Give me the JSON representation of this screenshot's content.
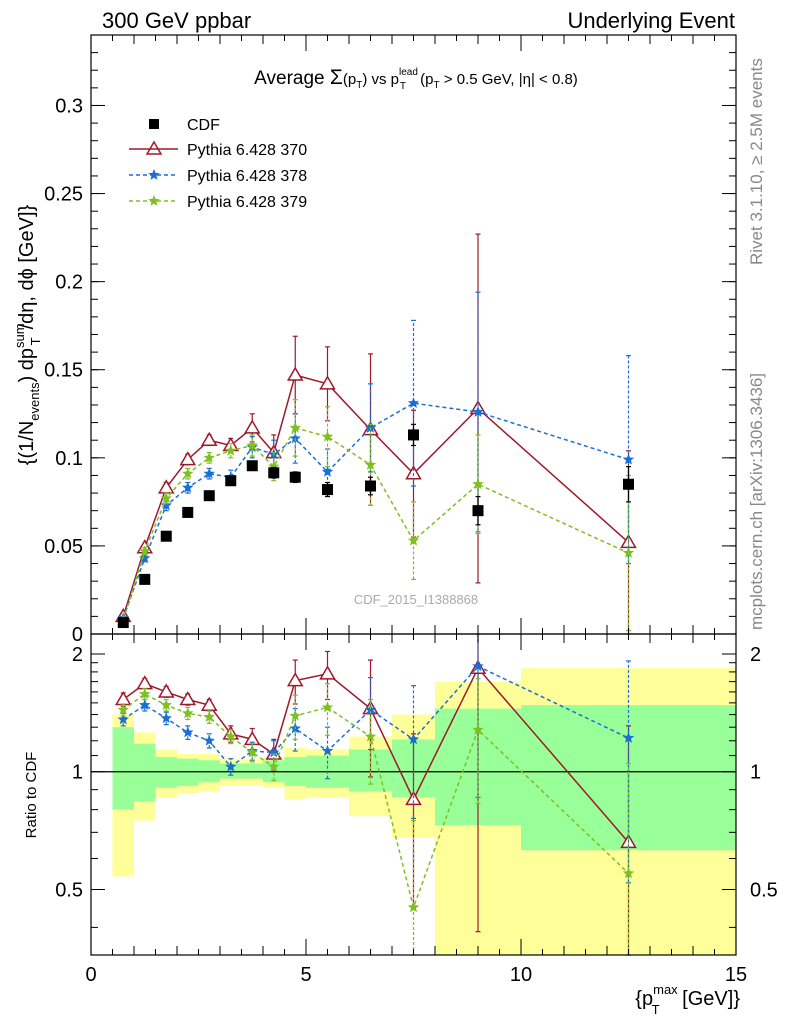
{
  "header": {
    "process": "300 GeV ppbar",
    "analysis_label": "Underlying Event"
  },
  "side_labels": {
    "rivet": "Rivet 3.1.10, ≥ 2.5M events",
    "source": "mcplots.cern.ch [arXiv:1306.3436]"
  },
  "watermark": "CDF_2015_I1388868",
  "chart_data": [
    {
      "type": "scatter",
      "title_parts": {
        "prefix": "Average ",
        "sigma": "Σ",
        "pt_open": "(p",
        "pt_sub": "T",
        "pt_close": ")",
        "vs": " vs p",
        "lead_sup": "lead",
        "lead_sub": "T",
        "cut_open": " (p",
        "cut_sub": "T",
        "cut_text": " > 0.5 GeV, |η| < 0.8)"
      },
      "ylabel_parts": {
        "a": "{(1/N",
        "a_sub": "events",
        "b": ") dp",
        "b_sup": "sum",
        "b_sub": "T",
        "c": "/dη, dϕ [GeV]}"
      },
      "xlim": [
        0,
        15
      ],
      "ylim": [
        0,
        0.34
      ],
      "yticks": [
        0,
        0.05,
        0.1,
        0.15,
        0.2,
        0.25,
        0.3
      ],
      "ytick_labels": [
        "0",
        "0.05",
        "0.1",
        "0.15",
        "0.2",
        "0.25",
        "0.3"
      ],
      "x": [
        0.75,
        1.25,
        1.75,
        2.25,
        2.75,
        3.25,
        3.75,
        4.25,
        4.75,
        5.5,
        6.5,
        7.5,
        9.0,
        12.5
      ],
      "series": [
        {
          "name": "CDF",
          "color": "#000000",
          "marker": "square",
          "line": "none",
          "y": [
            0.0065,
            0.031,
            0.0555,
            0.069,
            0.0785,
            0.087,
            0.0955,
            0.0915,
            0.089,
            0.082,
            0.084,
            0.113,
            0.07,
            0.085
          ],
          "yerr": [
            0.0005,
            0.001,
            0.0015,
            0.0015,
            0.002,
            0.002,
            0.002,
            0.003,
            0.003,
            0.004,
            0.005,
            0.006,
            0.008,
            0.01
          ]
        },
        {
          "name": "Pythia 6.428 370",
          "color": "#a0182a",
          "marker": "triangle",
          "line": "solid",
          "y": [
            0.01,
            0.049,
            0.083,
            0.099,
            0.11,
            0.107,
            0.117,
            0.103,
            0.147,
            0.142,
            0.116,
            0.091,
            0.128,
            0.052
          ],
          "yerr": [
            0.001,
            0.002,
            0.003,
            0.003,
            0.003,
            0.004,
            0.008,
            0.01,
            0.022,
            0.021,
            0.043,
            0.036,
            0.099,
            0.052
          ]
        },
        {
          "name": "Pythia 6.428 378",
          "color": "#1a6fd6",
          "marker": "star",
          "line": "dashed",
          "y": [
            0.009,
            0.043,
            0.073,
            0.083,
            0.091,
            0.089,
            0.106,
            0.102,
            0.111,
            0.092,
            0.117,
            0.131,
            0.126,
            0.099
          ],
          "yerr": [
            0.001,
            0.002,
            0.003,
            0.003,
            0.003,
            0.004,
            0.006,
            0.008,
            0.014,
            0.013,
            0.025,
            0.047,
            0.068,
            0.059
          ]
        },
        {
          "name": "Pythia 6.428 379",
          "color": "#7fbf1f",
          "marker": "star",
          "line": "dashed",
          "y": [
            0.008,
            0.047,
            0.077,
            0.091,
            0.1,
            0.104,
            0.107,
            0.095,
            0.117,
            0.112,
            0.096,
            0.053,
            0.085,
            0.046
          ],
          "yerr": [
            0.001,
            0.002,
            0.003,
            0.003,
            0.003,
            0.004,
            0.006,
            0.008,
            0.016,
            0.017,
            0.023,
            0.022,
            0.028,
            0.044
          ]
        }
      ]
    },
    {
      "type": "scatter",
      "ylabel": "Ratio to CDF",
      "xlabel_parts": {
        "open": "{p",
        "sup": "max",
        "sub": "T",
        "close": " [GeV]}"
      },
      "xlim": [
        0,
        15
      ],
      "ylim": [
        0.34,
        2.25
      ],
      "xticks": [
        0,
        5,
        10,
        15
      ],
      "xtick_labels": [
        "0",
        "5",
        "10",
        "15"
      ],
      "yticks": [
        0.5,
        1,
        2
      ],
      "ytick_labels": [
        "0.5",
        "1",
        "2"
      ],
      "reference": 1,
      "bands": {
        "inner_color": "#99ff99",
        "outer_color": "#ffff99",
        "bins": [
          {
            "lo": 0.5,
            "hi": 1.0,
            "inner": [
              0.8,
              1.3
            ],
            "outer": [
              0.54,
              1.4
            ]
          },
          {
            "lo": 1.0,
            "hi": 1.5,
            "inner": [
              0.84,
              1.18
            ],
            "outer": [
              0.75,
              1.26
            ]
          },
          {
            "lo": 1.5,
            "hi": 2.0,
            "inner": [
              0.91,
              1.09
            ],
            "outer": [
              0.86,
              1.14
            ]
          },
          {
            "lo": 2.0,
            "hi": 2.5,
            "inner": [
              0.92,
              1.08
            ],
            "outer": [
              0.88,
              1.11
            ]
          },
          {
            "lo": 2.5,
            "hi": 3.0,
            "inner": [
              0.94,
              1.07
            ],
            "outer": [
              0.89,
              1.11
            ]
          },
          {
            "lo": 3.0,
            "hi": 3.5,
            "inner": [
              0.96,
              1.05
            ],
            "outer": [
              0.92,
              1.08
            ]
          },
          {
            "lo": 3.5,
            "hi": 4.0,
            "inner": [
              0.96,
              1.05
            ],
            "outer": [
              0.92,
              1.08
            ]
          },
          {
            "lo": 4.0,
            "hi": 4.5,
            "inner": [
              0.94,
              1.07
            ],
            "outer": [
              0.91,
              1.09
            ]
          },
          {
            "lo": 4.5,
            "hi": 5.0,
            "inner": [
              0.92,
              1.09
            ],
            "outer": [
              0.85,
              1.15
            ]
          },
          {
            "lo": 5.0,
            "hi": 6.0,
            "inner": [
              0.91,
              1.1
            ],
            "outer": [
              0.86,
              1.14
            ]
          },
          {
            "lo": 6.0,
            "hi": 7.0,
            "inner": [
              0.89,
              1.14
            ],
            "outer": [
              0.77,
              1.23
            ]
          },
          {
            "lo": 7.0,
            "hi": 8.0,
            "inner": [
              0.86,
              1.21
            ],
            "outer": [
              0.68,
              1.4
            ]
          },
          {
            "lo": 8.0,
            "hi": 10.0,
            "inner": [
              0.73,
              1.45
            ],
            "outer": [
              0.34,
              1.7
            ]
          },
          {
            "lo": 10.0,
            "hi": 15.0,
            "inner": [
              0.63,
              1.48
            ],
            "outer": [
              0.34,
              1.84
            ]
          }
        ]
      },
      "series": [
        {
          "name": "Pythia 6.428 370",
          "color": "#a0182a",
          "marker": "triangle",
          "line": "solid",
          "y": [
            1.53,
            1.68,
            1.6,
            1.53,
            1.48,
            1.25,
            1.21,
            1.11,
            1.71,
            1.78,
            1.45,
            0.85,
            1.84,
            0.66
          ],
          "yerr": [
            0.06,
            0.05,
            0.05,
            0.05,
            0.05,
            0.06,
            0.08,
            0.1,
            0.22,
            0.25,
            0.48,
            0.4,
            1.45,
            0.65
          ]
        },
        {
          "name": "Pythia 6.428 378",
          "color": "#1a6fd6",
          "marker": "star",
          "line": "dashed",
          "y": [
            1.36,
            1.48,
            1.37,
            1.26,
            1.2,
            1.03,
            1.13,
            1.12,
            1.29,
            1.13,
            1.44,
            1.21,
            1.86,
            1.22
          ],
          "yerr": [
            0.05,
            0.05,
            0.05,
            0.05,
            0.05,
            0.05,
            0.06,
            0.08,
            0.16,
            0.17,
            0.3,
            0.45,
            1.0,
            0.7
          ]
        },
        {
          "name": "Pythia 6.428 379",
          "color": "#7fbf1f",
          "marker": "star",
          "line": "dashed",
          "y": [
            1.44,
            1.58,
            1.48,
            1.41,
            1.38,
            1.23,
            1.12,
            1.03,
            1.39,
            1.46,
            1.23,
            0.45,
            1.28,
            0.55
          ],
          "yerr": [
            0.05,
            0.05,
            0.05,
            0.05,
            0.05,
            0.05,
            0.06,
            0.08,
            0.18,
            0.22,
            0.3,
            0.3,
            0.45,
            0.5
          ]
        }
      ]
    }
  ]
}
